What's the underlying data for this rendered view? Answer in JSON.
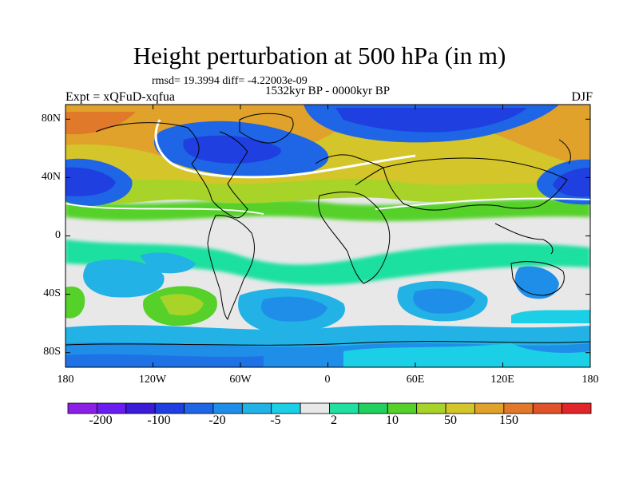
{
  "title": "Height perturbation at 500 hPa (in m)",
  "stats": "rmsd= 19.3994  diff= -4.22003e-09",
  "period": "1532kyr BP - 0000kyr BP",
  "experiment": "Expt = xQFuD-xqfua",
  "season": "DJF",
  "axes": {
    "y_ticks": [
      "80N",
      "40N",
      "0",
      "40S",
      "80S"
    ],
    "x_ticks": [
      "180",
      "120W",
      "60W",
      "0",
      "60E",
      "120E",
      "180"
    ]
  },
  "colorbar": {
    "labels": [
      "-200",
      "-100",
      "-20",
      "-5",
      "2",
      "10",
      "50",
      "150"
    ],
    "colors": [
      "#8b1fe6",
      "#6a1df0",
      "#3a1cd8",
      "#1f3fe0",
      "#1e66e6",
      "#1f8ee8",
      "#22b2e6",
      "#1bd0e6",
      "#e8e8e8",
      "#1fe0a0",
      "#22d060",
      "#55d12a",
      "#a8d42a",
      "#d4c52a",
      "#e0a22a",
      "#e07a2a",
      "#e0522a",
      "#e0262a"
    ]
  },
  "chart_data": {
    "type": "heatmap",
    "title": "Height perturbation at 500 hPa (in m)",
    "x_ticks": [
      "180",
      "120W",
      "60W",
      "0",
      "60E",
      "120E",
      "180"
    ],
    "y_ticks": [
      "80N",
      "40N",
      "0",
      "40S",
      "80S"
    ],
    "color_levels": [
      "-200",
      "-100",
      "-20",
      "-5",
      "2",
      "10",
      "50",
      "150"
    ],
    "projection": "cylindrical equidistant"
  }
}
